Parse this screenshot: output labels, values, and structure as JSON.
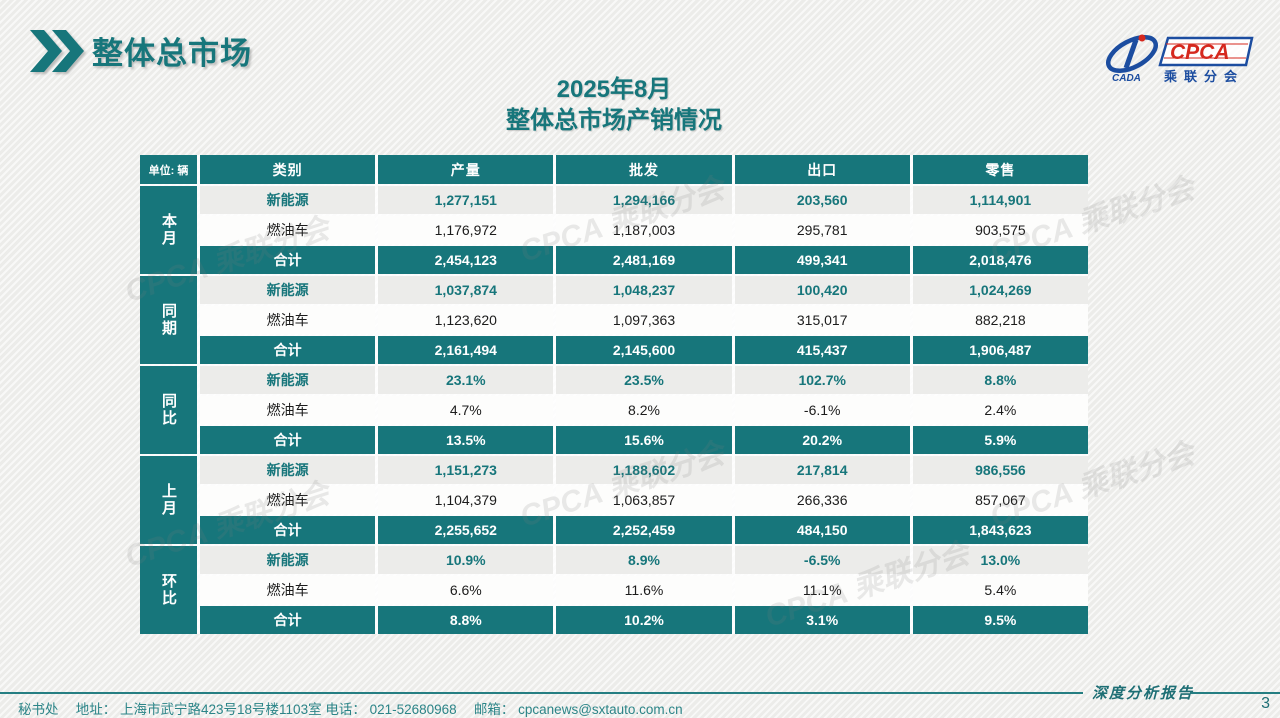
{
  "colors": {
    "accent": "#17767b",
    "logo_blue": "#1c4da0",
    "logo_red": "#d5281e"
  },
  "header": {
    "title": "整体总市场"
  },
  "logo": {
    "cpca": "CPCA",
    "cada": "CADA",
    "subtitle": "乘联分会"
  },
  "heading": {
    "line1": "2025年8月",
    "line2": "整体总市场产销情况"
  },
  "watermark": {
    "text": "CPCA 乘联分会"
  },
  "table": {
    "unit_label": "单位: 辆",
    "columns": [
      "类别",
      "产量",
      "批发",
      "出口",
      "零售"
    ],
    "groups": [
      {
        "label": "本月",
        "rows": [
          {
            "type": "nev",
            "label": "新能源",
            "values": [
              "1,277,151",
              "1,294,166",
              "203,560",
              "1,114,901"
            ]
          },
          {
            "type": "fuel",
            "label": "燃油车",
            "values": [
              "1,176,972",
              "1,187,003",
              "295,781",
              "903,575"
            ]
          },
          {
            "type": "total",
            "label": "合计",
            "values": [
              "2,454,123",
              "2,481,169",
              "499,341",
              "2,018,476"
            ]
          }
        ]
      },
      {
        "label": "同期",
        "rows": [
          {
            "type": "nev",
            "label": "新能源",
            "values": [
              "1,037,874",
              "1,048,237",
              "100,420",
              "1,024,269"
            ]
          },
          {
            "type": "fuel",
            "label": "燃油车",
            "values": [
              "1,123,620",
              "1,097,363",
              "315,017",
              "882,218"
            ]
          },
          {
            "type": "total",
            "label": "合计",
            "values": [
              "2,161,494",
              "2,145,600",
              "415,437",
              "1,906,487"
            ]
          }
        ]
      },
      {
        "label": "同比",
        "rows": [
          {
            "type": "nev",
            "label": "新能源",
            "values": [
              "23.1%",
              "23.5%",
              "102.7%",
              "8.8%"
            ]
          },
          {
            "type": "fuel",
            "label": "燃油车",
            "values": [
              "4.7%",
              "8.2%",
              "-6.1%",
              "2.4%"
            ]
          },
          {
            "type": "total",
            "label": "合计",
            "values": [
              "13.5%",
              "15.6%",
              "20.2%",
              "5.9%"
            ]
          }
        ]
      },
      {
        "label": "上月",
        "rows": [
          {
            "type": "nev",
            "label": "新能源",
            "values": [
              "1,151,273",
              "1,188,602",
              "217,814",
              "986,556"
            ]
          },
          {
            "type": "fuel",
            "label": "燃油车",
            "values": [
              "1,104,379",
              "1,063,857",
              "266,336",
              "857,067"
            ]
          },
          {
            "type": "total",
            "label": "合计",
            "values": [
              "2,255,652",
              "2,252,459",
              "484,150",
              "1,843,623"
            ]
          }
        ]
      },
      {
        "label": "环比",
        "rows": [
          {
            "type": "nev",
            "label": "新能源",
            "values": [
              "10.9%",
              "8.9%",
              "-6.5%",
              "13.0%"
            ]
          },
          {
            "type": "fuel",
            "label": "燃油车",
            "values": [
              "6.6%",
              "11.6%",
              "11.1%",
              "5.4%"
            ]
          },
          {
            "type": "total",
            "label": "合计",
            "values": [
              "8.8%",
              "10.2%",
              "3.1%",
              "9.5%"
            ]
          }
        ]
      }
    ]
  },
  "footer": {
    "info_line": "秘书处　 地址： 上海市武宁路423号18号楼1103室  电话： 021-52680968 　邮箱： cpcanews@sxtauto.com.cn",
    "report_label": "深度分析报告",
    "page_number": "3"
  }
}
